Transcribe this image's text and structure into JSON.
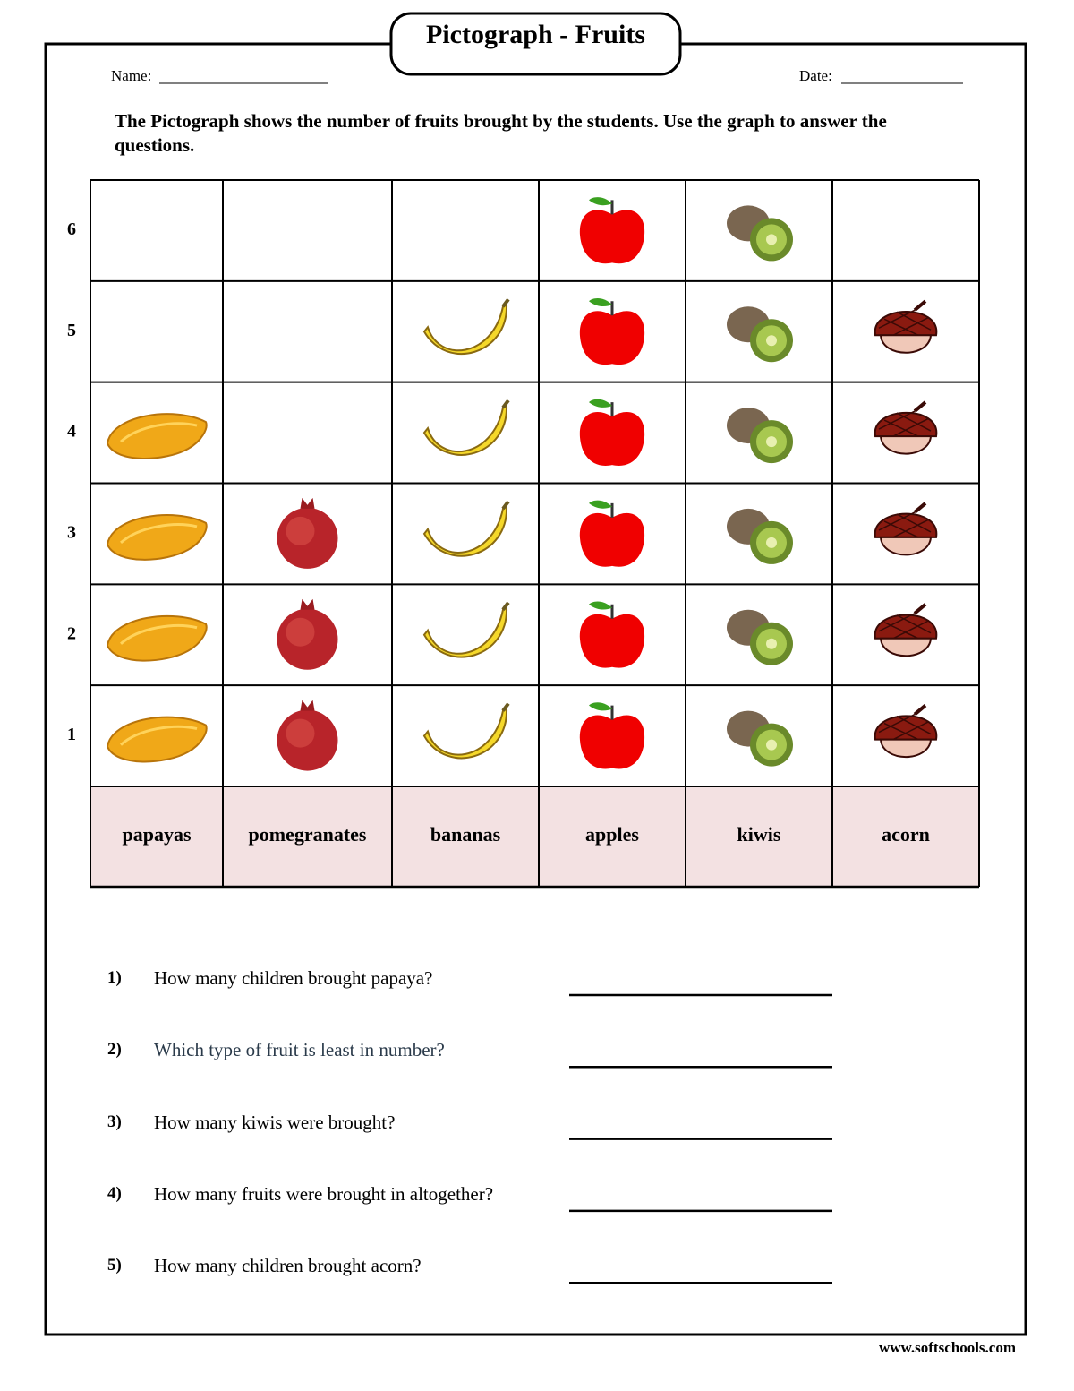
{
  "header": {
    "title": "Pictograph - Fruits",
    "name_label": "Name:",
    "date_label": "Date:",
    "instructions": "The Pictograph shows the number of fruits brought by the students. Use the graph to answer the questions."
  },
  "chart_data": {
    "type": "pictograph",
    "categories": [
      "papayas",
      "pomegranates",
      "bananas",
      "apples",
      "kiwis",
      "acorn"
    ],
    "values": [
      4,
      3,
      5,
      6,
      6,
      5
    ],
    "yticks": [
      1,
      2,
      3,
      4,
      5,
      6
    ]
  },
  "questions": [
    {
      "number": "1)",
      "text": "How many children brought papaya?"
    },
    {
      "number": "2)",
      "text": "Which type of fruit is least in number?"
    },
    {
      "number": "3)",
      "text": "How many kiwis were brought?"
    },
    {
      "number": "4)",
      "text": "How many fruits were brought in altogether?"
    },
    {
      "number": "5)",
      "text": "How many children brought acorn?"
    }
  ],
  "footer": "www.softschools.com"
}
